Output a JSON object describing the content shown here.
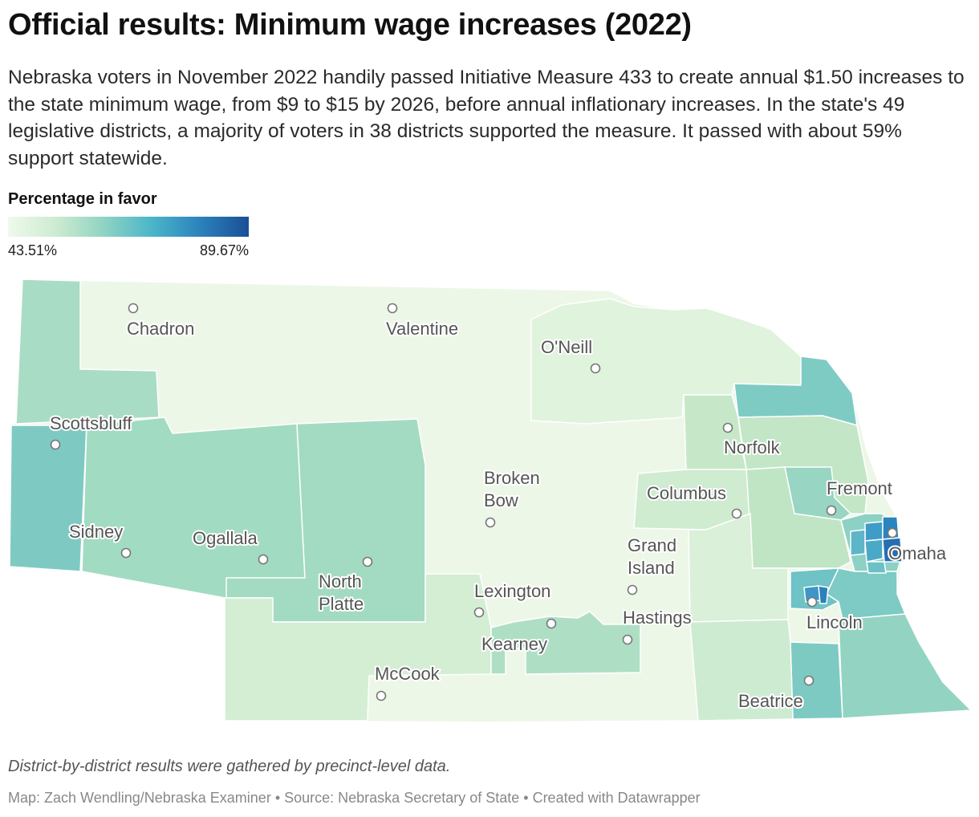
{
  "title": "Official results: Minimum wage increases (2022)",
  "description": "Nebraska voters in November 2022 handily passed Initiative Measure 433 to create annual $1.50 increases to the state minimum wage, from $9 to $15 by 2026, before annual inflationary increases. In the state's 49 legislative districts, a majority of voters in 38 districts supported the measure. It passed with about 59% support statewide.",
  "legend": {
    "title": "Percentage in favor",
    "min": "43.51%",
    "max": "89.67%",
    "colors": [
      "#effaea",
      "#cdebd0",
      "#8fd3c3",
      "#4ab5c9",
      "#2b82bb",
      "#1a4e96"
    ]
  },
  "cities": [
    {
      "key": "chadron",
      "name": "Chadron"
    },
    {
      "key": "valentine",
      "name": "Valentine"
    },
    {
      "key": "oneill",
      "name": "O'Neill"
    },
    {
      "key": "scottsbluff",
      "name": "Scottsbluff"
    },
    {
      "key": "norfolk",
      "name": "Norfolk"
    },
    {
      "key": "broken_bow",
      "name": "Broken Bow"
    },
    {
      "key": "columbus",
      "name": "Columbus"
    },
    {
      "key": "fremont",
      "name": "Fremont"
    },
    {
      "key": "sidney",
      "name": "Sidney"
    },
    {
      "key": "ogallala",
      "name": "Ogallala"
    },
    {
      "key": "grand_island",
      "name": "Grand Island"
    },
    {
      "key": "omaha",
      "name": "Omaha"
    },
    {
      "key": "north_platte",
      "name": "North Platte"
    },
    {
      "key": "lexington",
      "name": "Lexington"
    },
    {
      "key": "hastings",
      "name": "Hastings"
    },
    {
      "key": "lincoln",
      "name": "Lincoln"
    },
    {
      "key": "kearney",
      "name": "Kearney"
    },
    {
      "key": "mccook",
      "name": "McCook"
    },
    {
      "key": "beatrice",
      "name": "Beatrice"
    }
  ],
  "notes": "District-by-district results were gathered by precinct-level data.",
  "byline": "Map: Zach Wendling/Nebraska Examiner • Source: Nebraska Secretary of State • Created with Datawrapper"
}
